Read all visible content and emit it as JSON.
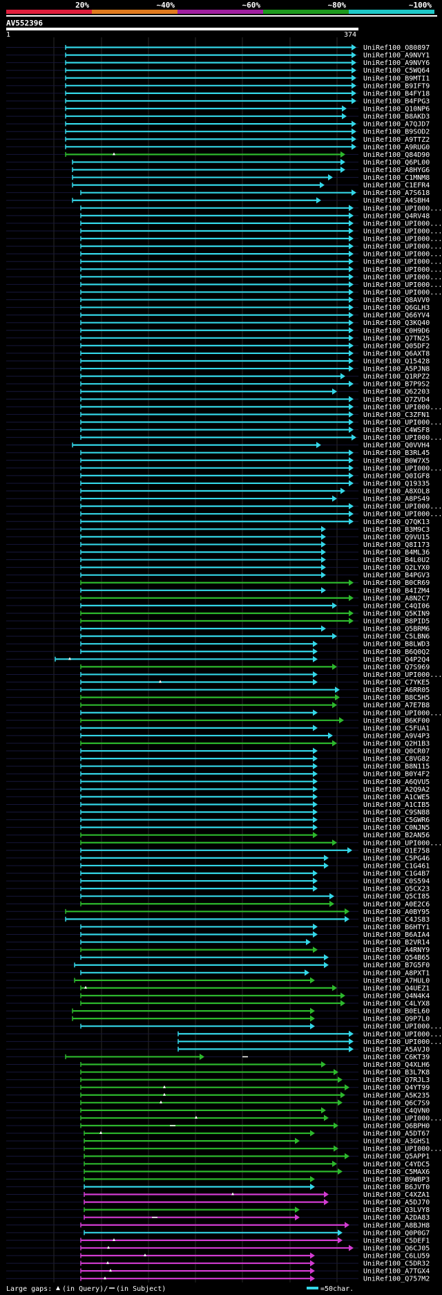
{
  "scale_header": {
    "segments": [
      {
        "label": "20%",
        "color": "#e01e3c"
      },
      {
        "label": "~40%",
        "color": "#e07a1e"
      },
      {
        "label": "~60%",
        "color": "#a020a0"
      },
      {
        "label": "~80%",
        "color": "#1e9a1e"
      },
      {
        "label": "~100%",
        "color": "#1ec8c8"
      }
    ]
  },
  "chart_data": {
    "type": "alignment-overview",
    "title": "AV552396",
    "query_range": [
      "1",
      "374"
    ],
    "colors": {
      "cyan": "#34d7e8",
      "green": "#2db82d",
      "magenta": "#d23cd2",
      "background": "#000000",
      "query_bar": "#ffffff",
      "gap_line": "#16163a"
    },
    "hits": [
      {
        "id": "UniRef100_O80897",
        "color": "cyan"
      },
      {
        "id": "UniRef100_A9NVY1",
        "color": "cyan"
      },
      {
        "id": "UniRef100_A9NVY6",
        "color": "cyan"
      },
      {
        "id": "UniRef100_C5WQ64",
        "color": "cyan"
      },
      {
        "id": "UniRef100_B9MTI1",
        "color": "cyan"
      },
      {
        "id": "UniRef100_B9IFT9",
        "color": "cyan"
      },
      {
        "id": "UniRef100_B4FY18",
        "color": "cyan"
      },
      {
        "id": "UniRef100_B4FPG3",
        "color": "cyan"
      },
      {
        "id": "UniRef100_Q10NP6",
        "color": "cyan"
      },
      {
        "id": "UniRef100_B8AKD3",
        "color": "cyan"
      },
      {
        "id": "UniRef100_A7QJD7",
        "color": "cyan"
      },
      {
        "id": "UniRef100_B9SOD2",
        "color": "cyan"
      },
      {
        "id": "UniRef100_A9TTZ2",
        "color": "cyan"
      },
      {
        "id": "UniRef100_A9RUG0",
        "color": "cyan"
      },
      {
        "id": "UniRef100_Q84D90",
        "color": "green"
      },
      {
        "id": "UniRef100_Q6PL00",
        "color": "cyan"
      },
      {
        "id": "UniRef100_A8HYG6",
        "color": "cyan"
      },
      {
        "id": "UniRef100_C1MNM8",
        "color": "cyan"
      },
      {
        "id": "UniRef100_C1EFR4",
        "color": "cyan"
      },
      {
        "id": "UniRef100_A7S618",
        "color": "cyan"
      },
      {
        "id": "UniRef100_A4SBH4",
        "color": "cyan"
      },
      {
        "id": "UniRef100_UPI000...",
        "color": "cyan"
      },
      {
        "id": "UniRef100_Q4RV48",
        "color": "cyan"
      },
      {
        "id": "UniRef100_UPI000...",
        "color": "cyan"
      },
      {
        "id": "UniRef100_UPI000...",
        "color": "cyan"
      },
      {
        "id": "UniRef100_UPI000...",
        "color": "cyan"
      },
      {
        "id": "UniRef100_UPI000...",
        "color": "cyan"
      },
      {
        "id": "UniRef100_UPI000...",
        "color": "cyan"
      },
      {
        "id": "UniRef100_UPI000...",
        "color": "cyan"
      },
      {
        "id": "UniRef100_UPI000...",
        "color": "cyan"
      },
      {
        "id": "UniRef100_UPI000...",
        "color": "cyan"
      },
      {
        "id": "UniRef100_UPI000...",
        "color": "cyan"
      },
      {
        "id": "UniRef100_UPI000...",
        "color": "cyan"
      },
      {
        "id": "UniRef100_Q8AVV0",
        "color": "cyan"
      },
      {
        "id": "UniRef100_Q6GLH3",
        "color": "cyan"
      },
      {
        "id": "UniRef100_Q66YV4",
        "color": "cyan"
      },
      {
        "id": "UniRef100_Q3KQ40",
        "color": "cyan"
      },
      {
        "id": "UniRef100_C0H9D6",
        "color": "cyan"
      },
      {
        "id": "UniRef100_Q7TN25",
        "color": "cyan"
      },
      {
        "id": "UniRef100_Q05DF2",
        "color": "cyan"
      },
      {
        "id": "UniRef100_Q6AXT8",
        "color": "cyan"
      },
      {
        "id": "UniRef100_Q15428",
        "color": "cyan"
      },
      {
        "id": "UniRef100_A5PJN8",
        "color": "cyan"
      },
      {
        "id": "UniRef100_Q1RPZ2",
        "color": "cyan"
      },
      {
        "id": "UniRef100_B7P9S2",
        "color": "cyan"
      },
      {
        "id": "UniRef100_Q62203",
        "color": "cyan"
      },
      {
        "id": "UniRef100_Q7ZVD4",
        "color": "cyan"
      },
      {
        "id": "UniRef100_UPI000...",
        "color": "cyan"
      },
      {
        "id": "UniRef100_C3ZFN1",
        "color": "cyan"
      },
      {
        "id": "UniRef100_UPI000...",
        "color": "cyan"
      },
      {
        "id": "UniRef100_C4WSF8",
        "color": "cyan"
      },
      {
        "id": "UniRef100_UPI000...",
        "color": "cyan"
      },
      {
        "id": "UniRef100_Q0VVH4",
        "color": "cyan"
      },
      {
        "id": "UniRef100_B3RL45",
        "color": "cyan"
      },
      {
        "id": "UniRef100_B0W7X5",
        "color": "cyan"
      },
      {
        "id": "UniRef100_UPI000...",
        "color": "cyan"
      },
      {
        "id": "UniRef100_Q0IGF8",
        "color": "cyan"
      },
      {
        "id": "UniRef100_Q19335",
        "color": "cyan"
      },
      {
        "id": "UniRef100_A8XOL8",
        "color": "cyan"
      },
      {
        "id": "UniRef100_A8PS49",
        "color": "cyan"
      },
      {
        "id": "UniRef100_UPI000...",
        "color": "cyan"
      },
      {
        "id": "UniRef100_UPI000...",
        "color": "cyan"
      },
      {
        "id": "UniRef100_Q7QK13",
        "color": "cyan"
      },
      {
        "id": "UniRef100_B3M9C3",
        "color": "cyan"
      },
      {
        "id": "UniRef100_Q9VU15",
        "color": "cyan"
      },
      {
        "id": "UniRef100_Q8I173",
        "color": "cyan"
      },
      {
        "id": "UniRef100_B4ML36",
        "color": "cyan"
      },
      {
        "id": "UniRef100_B4L0U2",
        "color": "cyan"
      },
      {
        "id": "UniRef100_Q2LYX0",
        "color": "cyan"
      },
      {
        "id": "UniRef100_B4PGV3",
        "color": "cyan"
      },
      {
        "id": "UniRef100_B0CR69",
        "color": "green"
      },
      {
        "id": "UniRef100_B4IZM4",
        "color": "cyan"
      },
      {
        "id": "UniRef100_A8N2C7",
        "color": "green"
      },
      {
        "id": "UniRef100_C4QI06",
        "color": "cyan"
      },
      {
        "id": "UniRef100_Q5KIN9",
        "color": "green"
      },
      {
        "id": "UniRef100_B8PID5",
        "color": "green"
      },
      {
        "id": "UniRef100_Q5BRM6",
        "color": "cyan"
      },
      {
        "id": "UniRef100_C5LBN6",
        "color": "cyan"
      },
      {
        "id": "UniRef100_B8LWD3",
        "color": "cyan"
      },
      {
        "id": "UniRef100_B6Q0Q2",
        "color": "cyan"
      },
      {
        "id": "UniRef100_Q4P2Q4",
        "color": "cyan"
      },
      {
        "id": "UniRef100_Q7S969",
        "color": "green"
      },
      {
        "id": "UniRef100_UPI000...",
        "color": "cyan"
      },
      {
        "id": "UniRef100_C7YKE5",
        "color": "cyan"
      },
      {
        "id": "UniRef100_A6RR05",
        "color": "cyan"
      },
      {
        "id": "UniRef100_B8C5H5",
        "color": "green"
      },
      {
        "id": "UniRef100_A7E7B8",
        "color": "green"
      },
      {
        "id": "UniRef100_UPI000...",
        "color": "cyan"
      },
      {
        "id": "UniRef100_B6KF00",
        "color": "green"
      },
      {
        "id": "UniRef100_C5FUA1",
        "color": "cyan"
      },
      {
        "id": "UniRef100_A9V4P3",
        "color": "cyan"
      },
      {
        "id": "UniRef100_Q2H1B3",
        "color": "green"
      },
      {
        "id": "UniRef100_Q0CR07",
        "color": "cyan"
      },
      {
        "id": "UniRef100_C8VG82",
        "color": "cyan"
      },
      {
        "id": "UniRef100_B8N115",
        "color": "cyan"
      },
      {
        "id": "UniRef100_B0Y4F2",
        "color": "cyan"
      },
      {
        "id": "UniRef100_A6QVU5",
        "color": "cyan"
      },
      {
        "id": "UniRef100_A2Q9A2",
        "color": "cyan"
      },
      {
        "id": "UniRef100_A1CWE5",
        "color": "cyan"
      },
      {
        "id": "UniRef100_A1CIB5",
        "color": "cyan"
      },
      {
        "id": "UniRef100_C9SN88",
        "color": "cyan"
      },
      {
        "id": "UniRef100_C5GWR6",
        "color": "cyan"
      },
      {
        "id": "UniRef100_C0NJN5",
        "color": "cyan"
      },
      {
        "id": "UniRef100_B2AN56",
        "color": "green"
      },
      {
        "id": "UniRef100_UPI000...",
        "color": "green"
      },
      {
        "id": "UniRef100_Q1E758",
        "color": "cyan"
      },
      {
        "id": "UniRef100_C5PG46",
        "color": "cyan"
      },
      {
        "id": "UniRef100_C1G461",
        "color": "cyan"
      },
      {
        "id": "UniRef100_C1G4B7",
        "color": "cyan"
      },
      {
        "id": "UniRef100_C0S594",
        "color": "cyan"
      },
      {
        "id": "UniRef100_Q5CX23",
        "color": "cyan"
      },
      {
        "id": "UniRef100_Q5CI85",
        "color": "cyan"
      },
      {
        "id": "UniRef100_A0E2C6",
        "color": "green"
      },
      {
        "id": "UniRef100_A0BY95",
        "color": "green"
      },
      {
        "id": "UniRef100_C4JS83",
        "color": "cyan"
      },
      {
        "id": "UniRef100_B6HTY1",
        "color": "cyan"
      },
      {
        "id": "UniRef100_B6AIA4",
        "color": "cyan"
      },
      {
        "id": "UniRef100_B2VR14",
        "color": "cyan"
      },
      {
        "id": "UniRef100_A4RNY9",
        "color": "green"
      },
      {
        "id": "UniRef100_Q54B65",
        "color": "cyan"
      },
      {
        "id": "UniRef100_B7G5F0",
        "color": "cyan"
      },
      {
        "id": "UniRef100_A8PXT1",
        "color": "cyan"
      },
      {
        "id": "UniRef100_A7HUL0",
        "color": "green"
      },
      {
        "id": "UniRef100_Q4UEZ1",
        "color": "green"
      },
      {
        "id": "UniRef100_Q4N4K4",
        "color": "green"
      },
      {
        "id": "UniRef100_C4LYX8",
        "color": "green"
      },
      {
        "id": "UniRef100_B0EL60",
        "color": "green"
      },
      {
        "id": "UniRef100_Q9P7L0",
        "color": "green"
      },
      {
        "id": "UniRef100_UPI000...",
        "color": "cyan"
      },
      {
        "id": "UniRef100_UPI000...",
        "color": "cyan"
      },
      {
        "id": "UniRef100_UPI000...",
        "color": "cyan"
      },
      {
        "id": "UniRef100_A5AVJ0",
        "color": "cyan"
      },
      {
        "id": "UniRef100_C6KT39",
        "color": "green"
      },
      {
        "id": "UniRef100_Q4XLH6",
        "color": "green"
      },
      {
        "id": "UniRef100_B3L7K8",
        "color": "green"
      },
      {
        "id": "UniRef100_Q7RJL3",
        "color": "green"
      },
      {
        "id": "UniRef100_Q4YT99",
        "color": "green"
      },
      {
        "id": "UniRef100_A5K235",
        "color": "green"
      },
      {
        "id": "UniRef100_Q6C7S9",
        "color": "green"
      },
      {
        "id": "UniRef100_C4QVN0",
        "color": "green"
      },
      {
        "id": "UniRef100_UPI000...",
        "color": "green"
      },
      {
        "id": "UniRef100_Q6BPH0",
        "color": "green"
      },
      {
        "id": "UniRef100_A5DT67",
        "color": "green"
      },
      {
        "id": "UniRef100_A3GHS1",
        "color": "green"
      },
      {
        "id": "UniRef100_UPI000...",
        "color": "green"
      },
      {
        "id": "UniRef100_Q5APP1",
        "color": "green"
      },
      {
        "id": "UniRef100_C4YDC5",
        "color": "green"
      },
      {
        "id": "UniRef100_C5MAX6",
        "color": "green"
      },
      {
        "id": "UniRef100_B9WBP3",
        "color": "green"
      },
      {
        "id": "UniRef100_B6JVT0",
        "color": "cyan"
      },
      {
        "id": "UniRef100_C4XZA1",
        "color": "magenta"
      },
      {
        "id": "UniRef100_A5DJ70",
        "color": "magenta"
      },
      {
        "id": "UniRef100_Q3LVY8",
        "color": "green"
      },
      {
        "id": "UniRef100_A2DA83",
        "color": "magenta"
      },
      {
        "id": "UniRef100_A8BJH8",
        "color": "magenta"
      },
      {
        "id": "UniRef100_Q0P0G7",
        "color": "cyan"
      },
      {
        "id": "UniRef100_C5DEF1",
        "color": "magenta"
      },
      {
        "id": "UniRef100_Q6CJ05",
        "color": "magenta"
      },
      {
        "id": "UniRef100_C6LU59",
        "color": "magenta"
      },
      {
        "id": "UniRef100_C5DR32",
        "color": "magenta"
      },
      {
        "id": "UniRef100_A7TGX4",
        "color": "magenta"
      },
      {
        "id": "UniRef100_Q757M2",
        "color": "magenta"
      }
    ]
  },
  "footer": {
    "gaps_label": "Large gaps:",
    "gaps_query": "(in Query)/",
    "gaps_subject": "(in Subject)",
    "legend_text": "=50char."
  }
}
